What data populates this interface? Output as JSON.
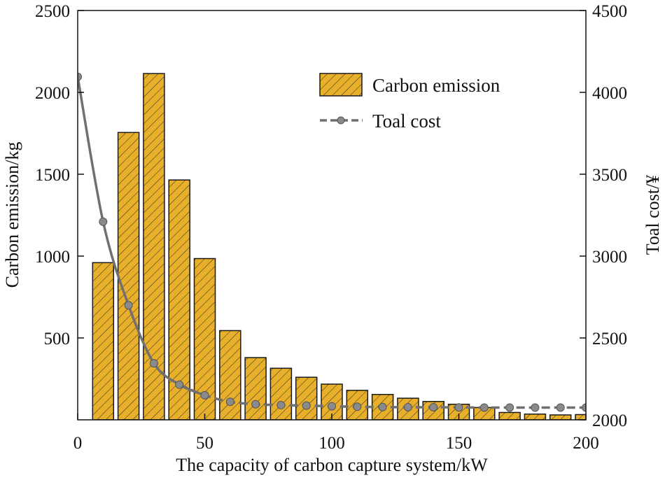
{
  "chart_data": {
    "type": "bar",
    "title": "",
    "xlabel": "The capacity of carbon capture system/kW",
    "ylabel": "Carbon emission/kg",
    "y2label": "Toal cost/¥",
    "xlim": [
      0,
      200
    ],
    "ylim": [
      0,
      2500
    ],
    "y2lim": [
      2000,
      4500
    ],
    "xticks": [
      0,
      50,
      100,
      150,
      200
    ],
    "yticks": [
      500,
      1000,
      1500,
      2000,
      2500
    ],
    "y2ticks": [
      2000,
      2500,
      3000,
      3500,
      4000,
      4500
    ],
    "legend_position": "top-right",
    "colors": {
      "bar_fill": "#E8AF2A",
      "bar_edge": "#1a1a1a",
      "line": "#707070",
      "marker": "#8a8a8a"
    },
    "series": [
      {
        "name": "Carbon emission",
        "type": "bar",
        "axis": "left",
        "x": [
          10,
          20,
          30,
          40,
          50,
          60,
          70,
          80,
          90,
          100,
          110,
          120,
          130,
          140,
          150,
          160,
          170,
          180,
          190,
          200
        ],
        "values": [
          960,
          1755,
          2115,
          1465,
          985,
          545,
          380,
          315,
          260,
          218,
          180,
          155,
          132,
          112,
          95,
          75,
          45,
          35,
          30,
          32
        ]
      },
      {
        "name": "Toal cost",
        "type": "line",
        "axis": "right",
        "x": [
          0,
          10,
          20,
          30,
          40,
          50,
          60,
          70,
          80,
          90,
          100,
          110,
          120,
          130,
          140,
          150,
          160,
          170,
          180,
          190,
          200
        ],
        "values": [
          4095,
          3210,
          2700,
          2345,
          2215,
          2150,
          2110,
          2095,
          2090,
          2087,
          2083,
          2080,
          2078,
          2077,
          2077,
          2076,
          2075,
          2075,
          2075,
          2075,
          2075
        ]
      }
    ]
  }
}
